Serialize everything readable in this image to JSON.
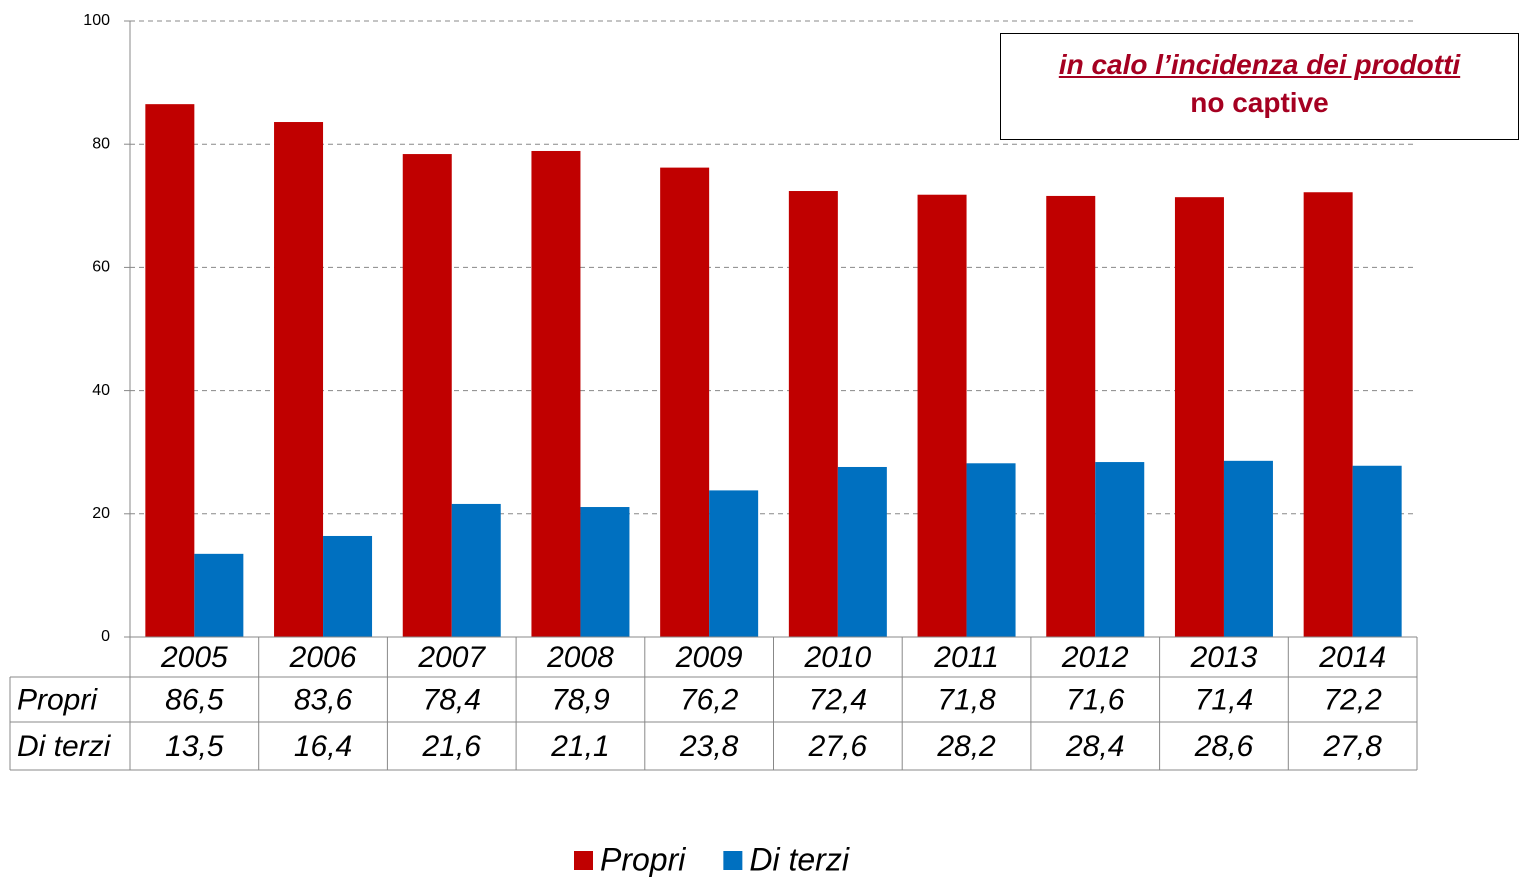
{
  "chart_data": {
    "type": "bar",
    "annotation": {
      "emphasis": "in calo l’incidenza dei prodotti",
      "text": "no captive"
    },
    "categories": [
      "2005",
      "2006",
      "2007",
      "2008",
      "2009",
      "2010",
      "2011",
      "2012",
      "2013",
      "2014"
    ],
    "series": [
      {
        "name": "Propri",
        "color": "#c00000",
        "values": [
          86.5,
          83.6,
          78.4,
          78.9,
          76.2,
          72.4,
          71.8,
          71.6,
          71.4,
          72.2
        ],
        "value_labels": [
          "86,5",
          "83,6",
          "78,4",
          "78,9",
          "76,2",
          "72,4",
          "71,8",
          "71,6",
          "71,4",
          "72,2"
        ]
      },
      {
        "name": "Di terzi",
        "color": "#0070c0",
        "values": [
          13.5,
          16.4,
          21.6,
          21.1,
          23.8,
          27.6,
          28.2,
          28.4,
          28.6,
          27.8
        ],
        "value_labels": [
          "13,5",
          "16,4",
          "21,6",
          "21,1",
          "23,8",
          "27,6",
          "28,2",
          "28,4",
          "28,6",
          "27,8"
        ]
      }
    ],
    "ylim": [
      0,
      100
    ],
    "yticks": [
      0,
      20,
      40,
      60,
      80,
      100
    ],
    "grid": true
  }
}
